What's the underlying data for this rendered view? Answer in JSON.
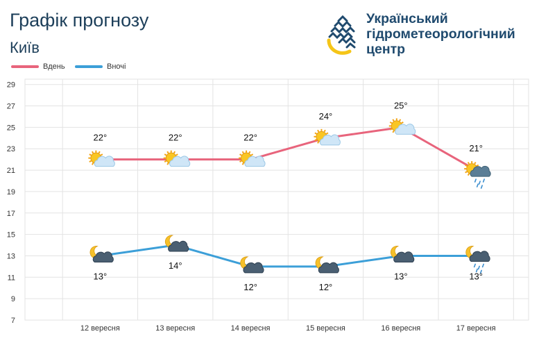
{
  "header": {
    "title": "Графік прогнозу",
    "city": "Київ"
  },
  "logo": {
    "line1": "Український",
    "line2": "гідрометеорологічний",
    "line3": "центр"
  },
  "colors": {
    "day": "#e8647c",
    "night": "#3c9fd8",
    "grid": "#e3e3e3",
    "title": "#1d3f5a"
  },
  "chart_data": {
    "type": "line",
    "categories": [
      "12 вересня",
      "13 вересня",
      "14 вересня",
      "15 вересня",
      "16 вересня",
      "17 вересня"
    ],
    "yticks": [
      7,
      9,
      11,
      13,
      15,
      17,
      19,
      21,
      23,
      25,
      27,
      29
    ],
    "ylim": [
      7,
      29.5
    ],
    "legend_position": "top-left",
    "grid": true,
    "series": [
      {
        "name": "Вдень",
        "values": [
          22,
          22,
          22,
          24,
          25,
          21
        ],
        "labels": [
          "22°",
          "22°",
          "22°",
          "24°",
          "25°",
          "21°"
        ],
        "icons": [
          "sun-cloud-icon",
          "sun-cloud-icon",
          "sun-cloud-icon",
          "sun-cloud-icon",
          "sun-cloud-icon",
          "sun-rain-cloud-icon"
        ]
      },
      {
        "name": "Вночі",
        "values": [
          13,
          14,
          12,
          12,
          13,
          13
        ],
        "labels": [
          "13°",
          "14°",
          "12°",
          "12°",
          "13°",
          "13°"
        ],
        "icons": [
          "moon-cloud-icon",
          "moon-cloud-icon",
          "moon-cloud-icon",
          "moon-cloud-icon",
          "moon-cloud-icon",
          "moon-rain-cloud-icon"
        ]
      }
    ]
  }
}
